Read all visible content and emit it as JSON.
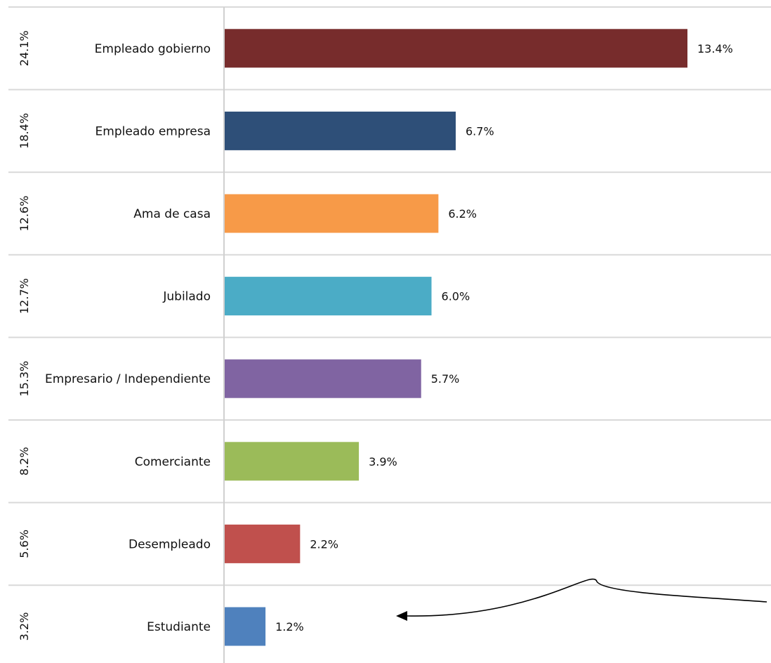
{
  "chart_data": {
    "type": "bar",
    "orientation": "horizontal",
    "categories": [
      "Empleado gobierno",
      "Empleado empresa",
      "Ama de casa",
      "Jubilado",
      "Empresario / Independiente",
      "Comerciante",
      "Desempleado",
      "Estudiante"
    ],
    "values": [
      13.4,
      6.7,
      6.2,
      6.0,
      5.7,
      3.9,
      2.2,
      1.2
    ],
    "value_labels": [
      "13.4%",
      "6.7%",
      "6.2%",
      "6.0%",
      "5.7%",
      "3.9%",
      "2.2%",
      "1.2%"
    ],
    "side_labels": [
      "24.1%",
      "18.4%",
      "12.6%",
      "12.7%",
      "15.3%",
      "8.2%",
      "5.6%",
      "3.2%"
    ],
    "colors": [
      "#772C2C",
      "#2E4F78",
      "#F79A48",
      "#4BACC6",
      "#8064A2",
      "#9BBB59",
      "#C0504D",
      "#4F81BD"
    ],
    "xlim": [
      0,
      13.4
    ],
    "grid": true,
    "legend": "none",
    "annotation": "curved-arrow pointing to Estudiante bar"
  }
}
